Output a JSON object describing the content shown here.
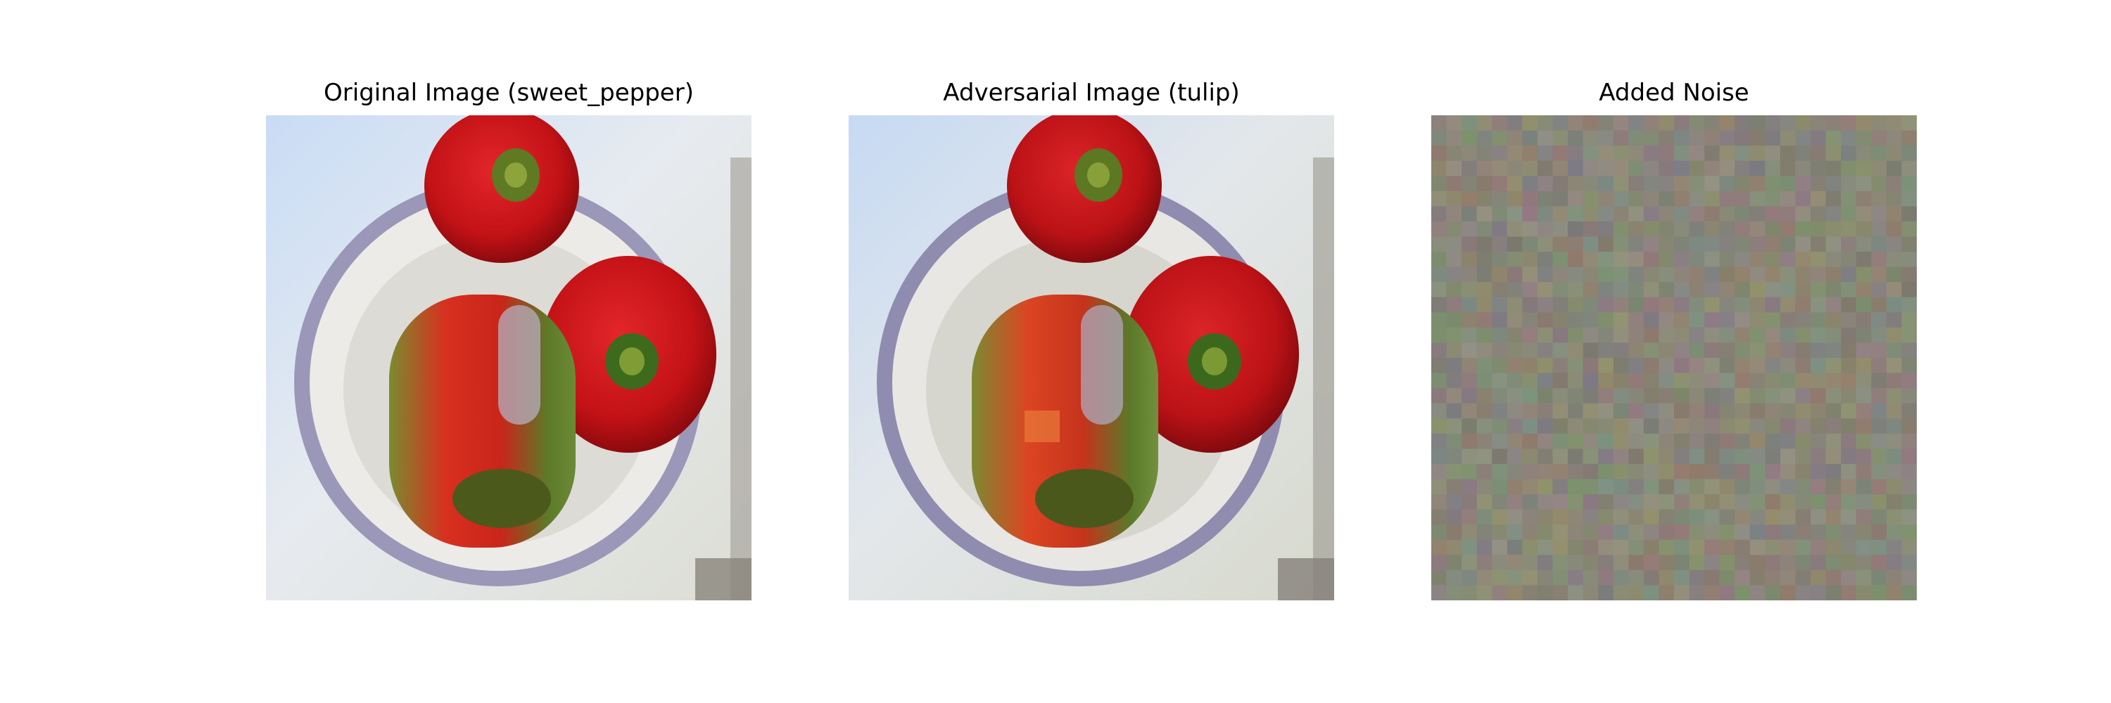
{
  "figure": {
    "panels": [
      {
        "title": "Original Image (sweet_pepper)",
        "kind": "original"
      },
      {
        "title": "Adversarial Image (tulip)",
        "kind": "adversarial"
      },
      {
        "title": "Added Noise",
        "kind": "noise"
      }
    ]
  },
  "colors": {
    "background": "#ffffff",
    "pepper_red": "#c81214",
    "pepper_dark_red": "#8e0b0f",
    "stem_green": "#5c7a1e",
    "plate_white": "#e9e7e4",
    "plate_rim": "#8b87b3",
    "sky_blue": "#cfe0f5",
    "noise_base": "#8a8878"
  }
}
